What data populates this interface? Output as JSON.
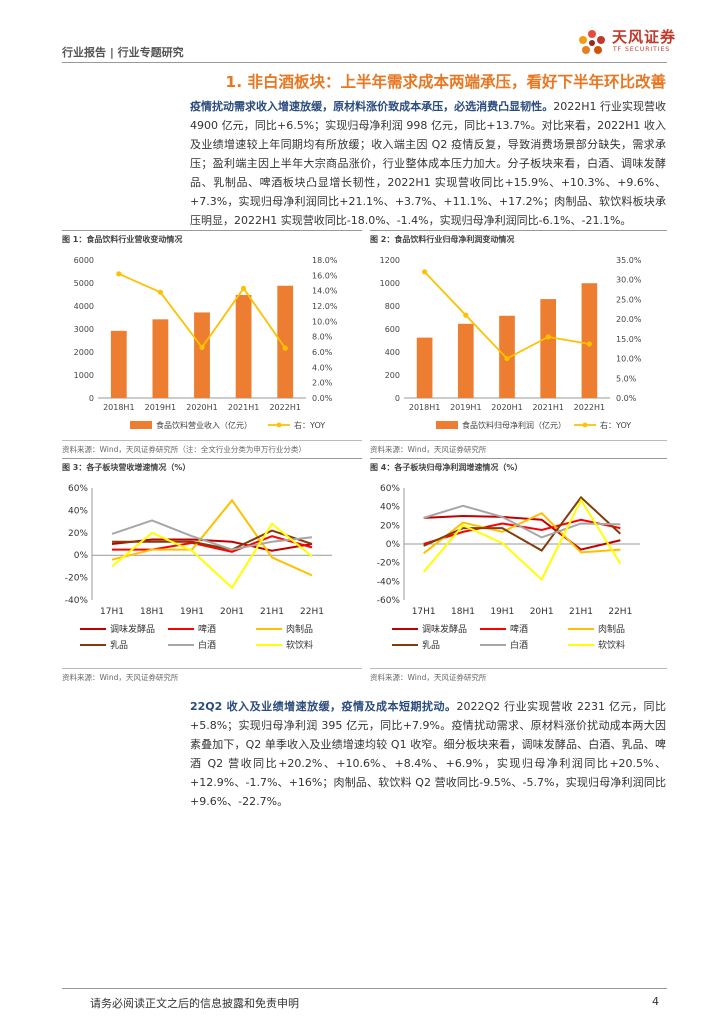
{
  "header": {
    "text": "行业报告 | 行业专题研究",
    "logo_cn": "天风证券",
    "logo_en": "TF SECURITIES"
  },
  "section_title": "1. 非白酒板块：上半年需求成本两端承压，看好下半年环比改善",
  "paragraph1": {
    "lead": "疫情扰动需求收入增速放缓，原材料涨价致成本承压，必选消费凸显韧性。",
    "body": "2022H1 行业实现营收 4900 亿元，同比+6.5%；实现归母净利润 998 亿元，同比+13.7%。对比来看，2022H1 收入及业绩增速较上年同期均有所放缓；收入端主因 Q2 疫情反复，导致消费场景部分缺失，需求承压；盈利端主因上半年大宗商品涨价，行业整体成本压力加大。分子板块来看，白酒、调味发酵品、乳制品、啤酒板块凸显增长韧性，2022H1 实现营收同比+15.9%、+10.3%、+9.6%、+7.3%，实现归母净利润同比+21.1%、+3.7%、+11.1%、+17.2%；肉制品、软饮料板块承压明显，2022H1 实现营收同比-18.0%、-1.4%，实现归母净利润同比-6.1%、-21.1%。"
  },
  "paragraph2": {
    "lead": "22Q2 收入及业绩增速放缓，疫情及成本短期扰动。",
    "body": "2022Q2 行业实现营收 2231 亿元，同比+5.8%；实现归母净利润 395 亿元，同比+7.9%。疫情扰动需求、原材料涨价扰动成本两大因素叠加下，Q2 单季收入及业绩增速均较 Q1 收窄。细分板块来看，调味发酵品、白酒、乳品、啤酒 Q2 营收同比+20.2%、+10.6%、+8.4%、+6.9%，实现归母净利润同比+20.5%、+12.9%、-1.7%、+16%；肉制品、软饮料 Q2 营收同比-9.5%、-5.7%，实现归母净利润同比+9.6%、-22.7%。"
  },
  "figures": {
    "fig1_title": "图 1：食品饮料行业营收变动情况",
    "fig2_title": "图 2：食品饮料行业归母净利润变动情况",
    "fig3_title": "图 3：各子板块营收增速情况（%）",
    "fig4_title": "图 4：各子板块归母净利润增速情况（%）",
    "src1": "资料来源：Wind，天风证券研究所（注：全文行业分类为申万行业分类）",
    "src2": "资料来源：Wind，天风证券研究所",
    "src3": "资料来源：Wind，天风证券研究所",
    "src4": "资料来源：Wind，天风证券研究所"
  },
  "colors": {
    "bar": "#ed7d31",
    "line": "#ffc000",
    "accent": "#e87722",
    "brand": "#c0392b"
  },
  "chart_data": [
    {
      "type": "bar",
      "categories": [
        "2018H1",
        "2019H1",
        "2020H1",
        "2021H1",
        "2022H1"
      ],
      "series": [
        {
          "name": "食品饮料营业收入（亿元）",
          "values": [
            2920,
            3420,
            3720,
            4480,
            4880
          ],
          "axis": "left",
          "kind": "bar"
        },
        {
          "name": "右：YOY",
          "values": [
            16.2,
            13.8,
            6.6,
            14.3,
            6.5
          ],
          "axis": "right",
          "kind": "line"
        }
      ],
      "left_ticks": [
        "0",
        "1000",
        "2000",
        "3000",
        "4000",
        "5000",
        "6000"
      ],
      "right_ticks": [
        "0.0%",
        "2.0%",
        "4.0%",
        "6.0%",
        "8.0%",
        "10.0%",
        "12.0%",
        "14.0%",
        "16.0%",
        "18.0%"
      ],
      "ylim_left": [
        0,
        6000
      ],
      "ylim_right": [
        0,
        18
      ]
    },
    {
      "type": "bar",
      "categories": [
        "2018H1",
        "2019H1",
        "2020H1",
        "2021H1",
        "2022H1"
      ],
      "series": [
        {
          "name": "食品饮料归母净利润（亿元）",
          "values": [
            525,
            645,
            715,
            860,
            998
          ],
          "axis": "left",
          "kind": "bar"
        },
        {
          "name": "右：YOY",
          "values": [
            32,
            21,
            10,
            15.5,
            13.7
          ],
          "axis": "right",
          "kind": "line"
        }
      ],
      "left_ticks": [
        "0",
        "200",
        "400",
        "600",
        "800",
        "1000",
        "1200"
      ],
      "right_ticks": [
        "0.0%",
        "5.0%",
        "10.0%",
        "15.0%",
        "20.0%",
        "25.0%",
        "30.0%",
        "35.0%"
      ],
      "ylim_left": [
        0,
        1200
      ],
      "ylim_right": [
        0,
        35
      ]
    },
    {
      "type": "line",
      "categories": [
        "17H1",
        "18H1",
        "19H1",
        "20H1",
        "21H1",
        "22H1"
      ],
      "series": [
        {
          "name": "调味发酵品",
          "values": [
            10,
            14,
            14,
            12,
            4,
            10
          ],
          "color": "#c00000"
        },
        {
          "name": "啤酒",
          "values": [
            5,
            5,
            11,
            3,
            17,
            7
          ],
          "color": "#ff0000"
        },
        {
          "name": "肉制品",
          "values": [
            -4,
            5,
            5,
            49,
            -2,
            -18
          ],
          "color": "#ffc000"
        },
        {
          "name": "乳品",
          "values": [
            12,
            12,
            12,
            5,
            22,
            10
          ],
          "color": "#843c0c"
        },
        {
          "name": "白酒",
          "values": [
            19,
            31,
            17,
            5,
            12,
            16
          ],
          "color": "#a6a6a6"
        },
        {
          "name": "软饮料",
          "values": [
            -10,
            20,
            4,
            -29,
            28,
            -1
          ],
          "color": "#ffff00"
        }
      ],
      "y_ticks": [
        "60%",
        "40%",
        "20%",
        "0%",
        "-20%",
        "-40%"
      ],
      "ylim": [
        -40,
        60
      ]
    },
    {
      "type": "line",
      "categories": [
        "17H1",
        "18H1",
        "19H1",
        "20H1",
        "21H1",
        "22H1"
      ],
      "series": [
        {
          "name": "调味发酵品",
          "values": [
            28,
            30,
            29,
            26,
            -6,
            4
          ],
          "color": "#c00000"
        },
        {
          "name": "啤酒",
          "values": [
            0,
            13,
            22,
            15,
            26,
            17
          ],
          "color": "#ff0000"
        },
        {
          "name": "肉制品",
          "values": [
            -10,
            23,
            13,
            33,
            -9,
            -6
          ],
          "color": "#ffc000"
        },
        {
          "name": "乳品",
          "values": [
            -2,
            17,
            17,
            -7,
            50,
            11
          ],
          "color": "#843c0c"
        },
        {
          "name": "白酒",
          "values": [
            28,
            41,
            29,
            7,
            22,
            21
          ],
          "color": "#a6a6a6"
        },
        {
          "name": "软饮料",
          "values": [
            -30,
            20,
            1,
            -38,
            47,
            -21
          ],
          "color": "#ffff00"
        }
      ],
      "y_ticks": [
        "60%",
        "40%",
        "20%",
        "0%",
        "-20%",
        "-40%",
        "-60%"
      ],
      "ylim": [
        -60,
        60
      ]
    }
  ],
  "footer": {
    "disclaimer": "请务必阅读正文之后的信息披露和免责申明",
    "page": "4"
  }
}
